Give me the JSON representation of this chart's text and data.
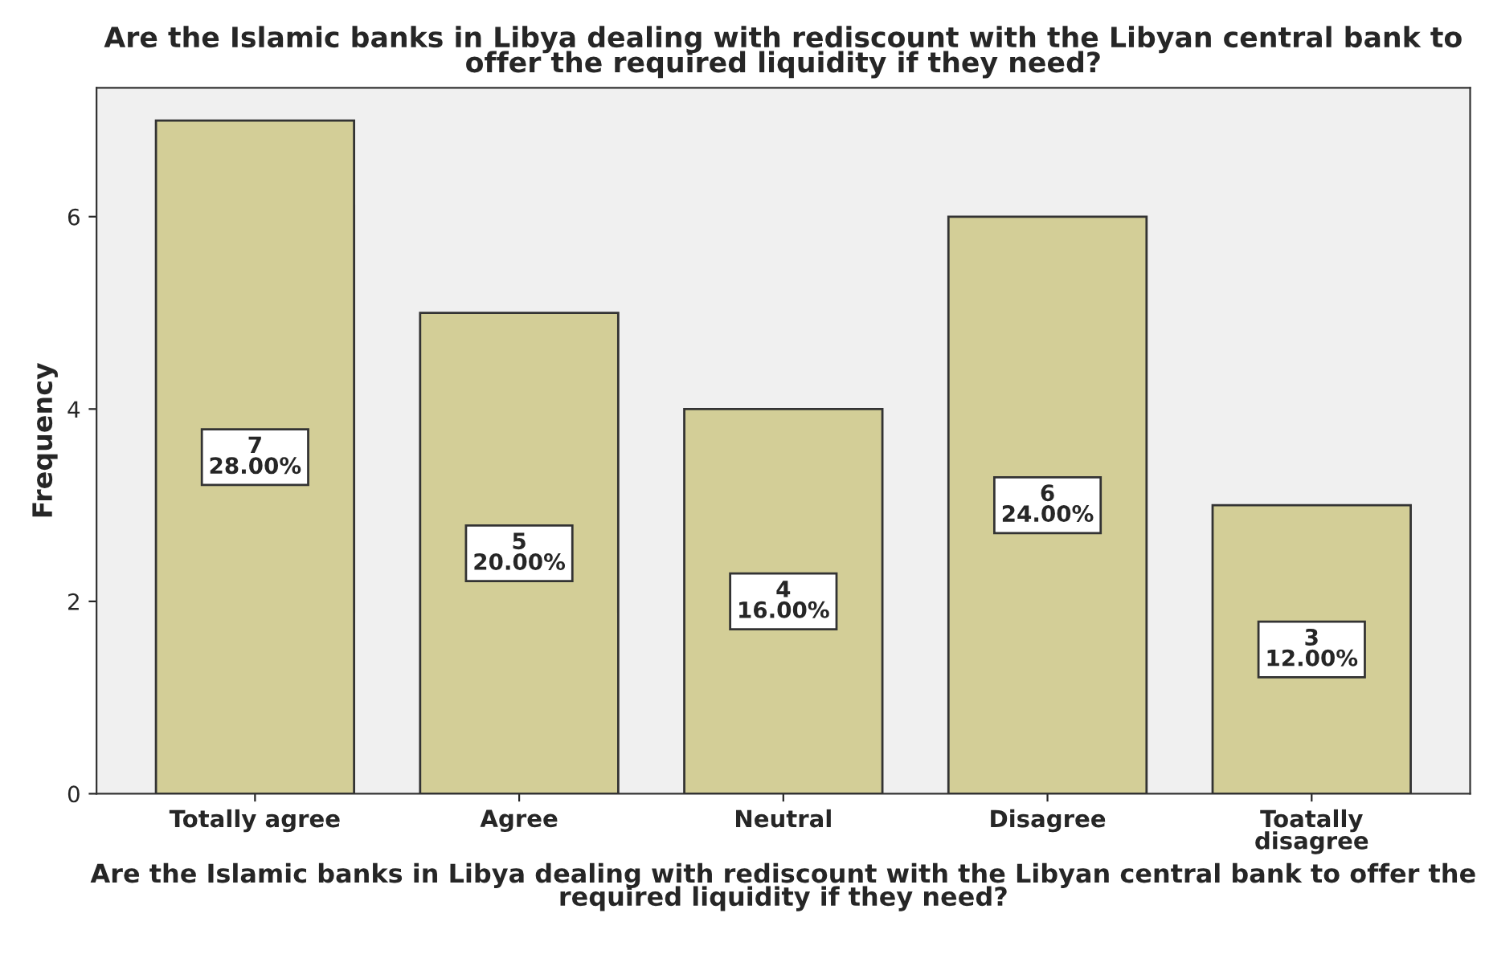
{
  "chart_data": {
    "type": "bar",
    "title": "Are the Islamic banks in Libya dealing with rediscount with the Libyan central bank to offer the required liquidity if they need?",
    "xlabel": "Are the Islamic banks in Libya dealing with rediscount with the Libyan central bank to offer the required liquidity if they need?",
    "ylabel": "Frequency",
    "categories": [
      "Totally agree",
      "Agree",
      "Neutral",
      "Disagree",
      "Toatally\ndisagree"
    ],
    "values": [
      7,
      5,
      4,
      6,
      3
    ],
    "value_labels": [
      "7\n28.00%",
      "5\n20.00%",
      "4\n16.00%",
      "6\n24.00%",
      "3\n12.00%"
    ],
    "color": "#d3ce97",
    "ylim": [
      0,
      7.34
    ],
    "yticks": [
      0,
      2,
      4,
      6
    ],
    "grid": false
  }
}
